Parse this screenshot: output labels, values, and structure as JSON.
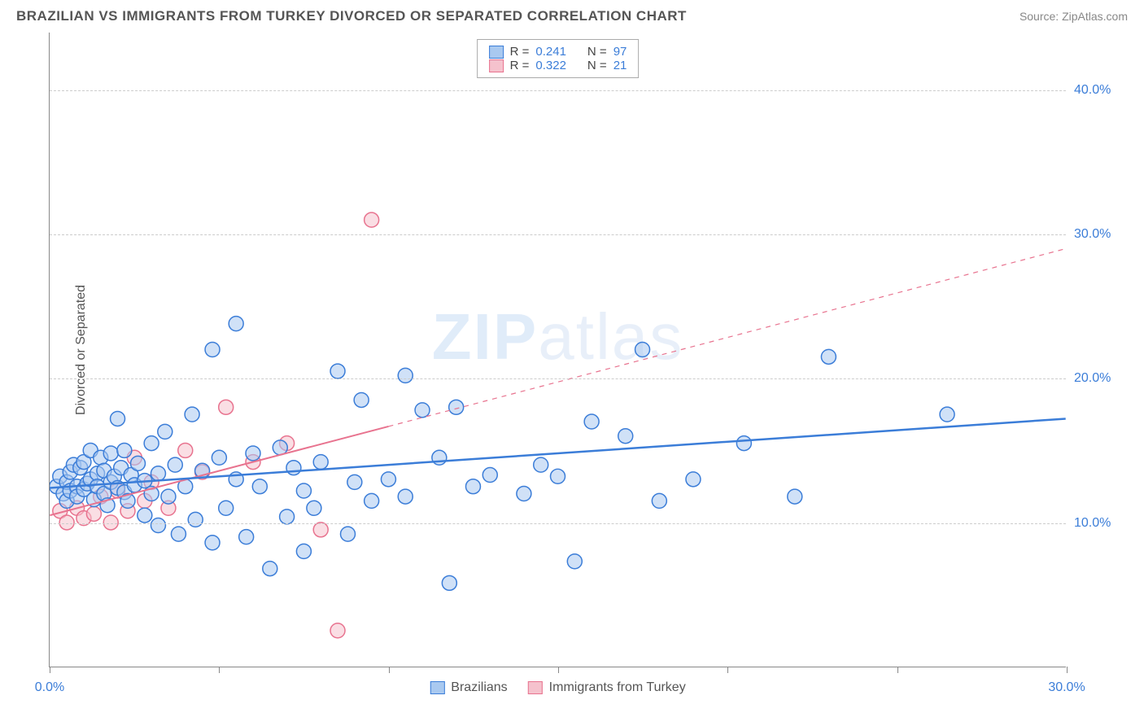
{
  "header": {
    "title": "BRAZILIAN VS IMMIGRANTS FROM TURKEY DIVORCED OR SEPARATED CORRELATION CHART",
    "source": "Source: ZipAtlas.com"
  },
  "chart": {
    "type": "scatter",
    "y_axis_label": "Divorced or Separated",
    "xlim": [
      0,
      30
    ],
    "ylim": [
      0,
      44
    ],
    "x_ticks": [
      0,
      5,
      10,
      15,
      20,
      25,
      30
    ],
    "x_tick_labels": {
      "0": "0.0%",
      "30": "30.0%"
    },
    "y_gridlines": [
      10,
      20,
      30,
      40
    ],
    "y_tick_labels": {
      "10": "10.0%",
      "20": "20.0%",
      "30": "30.0%",
      "40": "40.0%"
    },
    "background_color": "#ffffff",
    "grid_color": "#cccccc",
    "axis_color": "#888888",
    "marker_radius": 9,
    "marker_stroke_width": 1.5,
    "watermark_text": "ZIPatlas",
    "series": {
      "blue": {
        "label": "Brazilians",
        "fill": "#a9c9f0",
        "stroke": "#3b7dd8",
        "fill_opacity": 0.55,
        "r_value": "0.241",
        "n_value": "97",
        "trend_line": {
          "x1": 0,
          "y1": 12.4,
          "x2": 30,
          "y2": 17.2,
          "stroke_width": 2.5,
          "dash_after_x": null
        },
        "points": [
          [
            0.2,
            12.5
          ],
          [
            0.3,
            13.2
          ],
          [
            0.4,
            12.0
          ],
          [
            0.5,
            12.8
          ],
          [
            0.5,
            11.5
          ],
          [
            0.6,
            13.5
          ],
          [
            0.6,
            12.2
          ],
          [
            0.7,
            14.0
          ],
          [
            0.8,
            12.5
          ],
          [
            0.8,
            11.8
          ],
          [
            0.9,
            13.8
          ],
          [
            1.0,
            12.3
          ],
          [
            1.0,
            14.2
          ],
          [
            1.1,
            12.7
          ],
          [
            1.2,
            13.0
          ],
          [
            1.2,
            15.0
          ],
          [
            1.3,
            11.6
          ],
          [
            1.4,
            13.4
          ],
          [
            1.4,
            12.5
          ],
          [
            1.5,
            14.5
          ],
          [
            1.6,
            12.0
          ],
          [
            1.6,
            13.6
          ],
          [
            1.7,
            11.2
          ],
          [
            1.8,
            12.8
          ],
          [
            1.8,
            14.8
          ],
          [
            1.9,
            13.2
          ],
          [
            2.0,
            12.4
          ],
          [
            2.0,
            17.2
          ],
          [
            2.1,
            13.8
          ],
          [
            2.2,
            12.1
          ],
          [
            2.2,
            15.0
          ],
          [
            2.3,
            11.5
          ],
          [
            2.4,
            13.3
          ],
          [
            2.5,
            12.6
          ],
          [
            2.6,
            14.1
          ],
          [
            2.8,
            12.9
          ],
          [
            2.8,
            10.5
          ],
          [
            3.0,
            15.5
          ],
          [
            3.0,
            12.0
          ],
          [
            3.2,
            13.4
          ],
          [
            3.2,
            9.8
          ],
          [
            3.4,
            16.3
          ],
          [
            3.5,
            11.8
          ],
          [
            3.7,
            14.0
          ],
          [
            3.8,
            9.2
          ],
          [
            4.0,
            12.5
          ],
          [
            4.2,
            17.5
          ],
          [
            4.3,
            10.2
          ],
          [
            4.5,
            13.6
          ],
          [
            4.8,
            22.0
          ],
          [
            4.8,
            8.6
          ],
          [
            5.0,
            14.5
          ],
          [
            5.2,
            11.0
          ],
          [
            5.5,
            23.8
          ],
          [
            5.5,
            13.0
          ],
          [
            5.8,
            9.0
          ],
          [
            6.0,
            14.8
          ],
          [
            6.2,
            12.5
          ],
          [
            6.5,
            6.8
          ],
          [
            6.8,
            15.2
          ],
          [
            7.0,
            10.4
          ],
          [
            7.2,
            13.8
          ],
          [
            7.5,
            8.0
          ],
          [
            7.5,
            12.2
          ],
          [
            7.8,
            11.0
          ],
          [
            8.0,
            14.2
          ],
          [
            8.5,
            20.5
          ],
          [
            8.8,
            9.2
          ],
          [
            9.0,
            12.8
          ],
          [
            9.2,
            18.5
          ],
          [
            9.5,
            11.5
          ],
          [
            10.0,
            13.0
          ],
          [
            10.5,
            20.2
          ],
          [
            10.5,
            11.8
          ],
          [
            11.0,
            17.8
          ],
          [
            11.5,
            14.5
          ],
          [
            11.8,
            5.8
          ],
          [
            12.0,
            18.0
          ],
          [
            12.5,
            12.5
          ],
          [
            13.0,
            13.3
          ],
          [
            14.0,
            12.0
          ],
          [
            14.5,
            14.0
          ],
          [
            15.0,
            13.2
          ],
          [
            15.5,
            7.3
          ],
          [
            16.0,
            17.0
          ],
          [
            17.0,
            16.0
          ],
          [
            17.5,
            22.0
          ],
          [
            18.0,
            11.5
          ],
          [
            19.0,
            13.0
          ],
          [
            20.5,
            15.5
          ],
          [
            22.0,
            11.8
          ],
          [
            23.0,
            21.5
          ],
          [
            26.5,
            17.5
          ]
        ]
      },
      "pink": {
        "label": "Immigrants from Turkey",
        "fill": "#f5c2cd",
        "stroke": "#e8738f",
        "fill_opacity": 0.55,
        "r_value": "0.322",
        "n_value": "21",
        "trend_line": {
          "x1": 0,
          "y1": 10.5,
          "x2": 30,
          "y2": 29.0,
          "stroke_width": 2,
          "dash_after_x": 10
        },
        "points": [
          [
            0.3,
            10.8
          ],
          [
            0.5,
            10.0
          ],
          [
            0.8,
            11.0
          ],
          [
            1.0,
            10.3
          ],
          [
            1.3,
            10.6
          ],
          [
            1.5,
            11.8
          ],
          [
            1.8,
            10.0
          ],
          [
            2.0,
            12.2
          ],
          [
            2.3,
            10.8
          ],
          [
            2.5,
            14.5
          ],
          [
            2.8,
            11.5
          ],
          [
            3.0,
            12.8
          ],
          [
            3.5,
            11.0
          ],
          [
            4.0,
            15.0
          ],
          [
            4.5,
            13.5
          ],
          [
            5.2,
            18.0
          ],
          [
            6.0,
            14.2
          ],
          [
            7.0,
            15.5
          ],
          [
            8.0,
            9.5
          ],
          [
            8.5,
            2.5
          ],
          [
            9.5,
            31.0
          ]
        ]
      }
    },
    "legend_top": {
      "r_label": "R =",
      "n_label": "N ="
    },
    "legend_bottom": [
      {
        "series": "blue"
      },
      {
        "series": "pink"
      }
    ]
  }
}
